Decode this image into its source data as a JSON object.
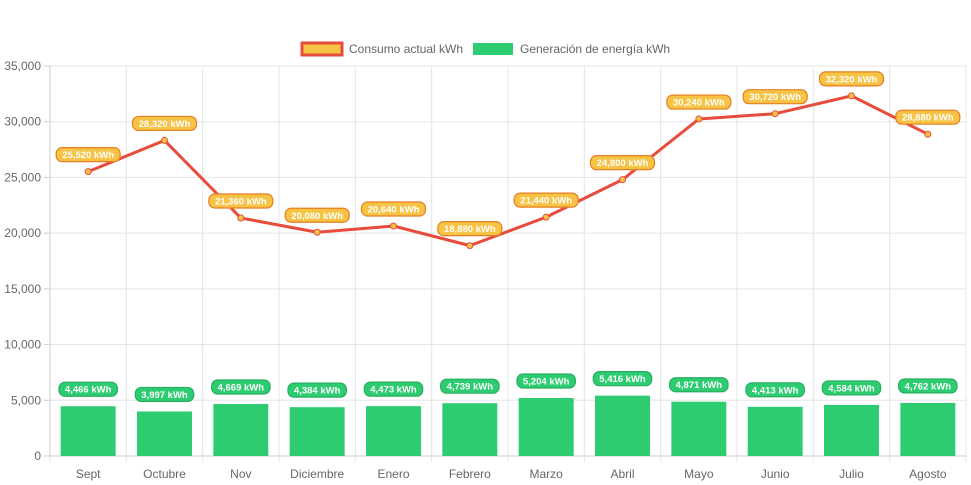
{
  "chart_data": {
    "type": "bar",
    "categories": [
      "Sept",
      "Octubre",
      "Nov",
      "Diciembre",
      "Enero",
      "Febrero",
      "Marzo",
      "Abril",
      "Mayo",
      "Junio",
      "Julio",
      "Agosto"
    ],
    "ylim": [
      0,
      35000
    ],
    "yticks": [
      "0",
      "5,000",
      "10,000",
      "15,000",
      "20,000",
      "25,000",
      "30,000",
      "35,000"
    ],
    "grid": true,
    "legend_position": "top-center",
    "series": [
      {
        "name": "Consumo actual kWh",
        "type": "line",
        "color": "#e74c3c",
        "fill": "#f6c344",
        "values": [
          25520,
          28320,
          21360,
          20080,
          20640,
          18880,
          21440,
          24800,
          30240,
          30720,
          32320,
          28880
        ],
        "labels": [
          "25,520 kWh",
          "28,320 kWh",
          "21,360 kWh",
          "20,080 kWh",
          "20,640 kWh",
          "18,880 kWh",
          "21,440 kWh",
          "24,800 kWh",
          "30,240 kWh",
          "30,720 kWh",
          "32,320 kWh",
          "28,880 kWh"
        ]
      },
      {
        "name": "Generación de energía kWh",
        "type": "bar",
        "color": "#2ecc71",
        "values": [
          4466,
          3997,
          4669,
          4384,
          4473,
          4739,
          5204,
          5416,
          4871,
          4413,
          4584,
          4762
        ],
        "labels": [
          "4,466 kWh",
          "3,997 kWh",
          "4,669 kWh",
          "4,384 kWh",
          "4,473 kWh",
          "4,739 kWh",
          "5,204 kWh",
          "5,416 kWh",
          "4,871 kWh",
          "4,413 kWh",
          "4,584 kWh",
          "4,762 kWh"
        ]
      }
    ]
  }
}
